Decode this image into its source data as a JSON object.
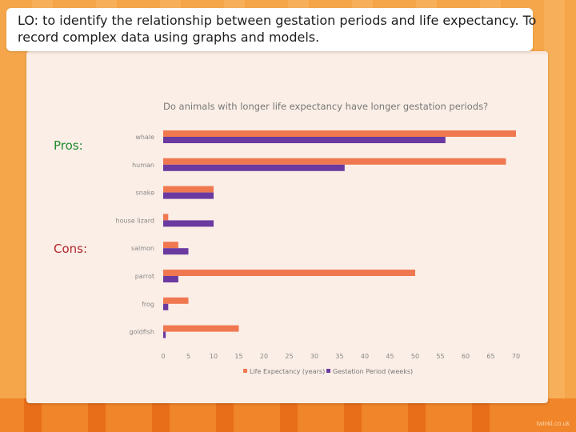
{
  "lo_text": "LO: to identify the relationship between gestation periods and life expectancy. To record complex data using graphs and models.",
  "pros_label": "Pros:",
  "cons_label": "Cons:",
  "watermark": "twinkl.co.uk",
  "colors": {
    "life_expectancy": "#f07850",
    "gestation": "#6a3aa0",
    "pros_text": "#1f8a2e",
    "cons_text": "#b3262e",
    "background": "#f5a64a"
  },
  "chart_data": {
    "type": "bar",
    "orientation": "horizontal",
    "title": "Do animals with longer life expectancy have longer gestation periods?",
    "categories": [
      "whale",
      "human",
      "snake",
      "house lizard",
      "salmon",
      "parrot",
      "frog",
      "goldfish"
    ],
    "series": [
      {
        "name": "Life Expectancy (years)",
        "values": [
          70,
          68,
          10,
          1,
          3,
          50,
          5,
          15
        ]
      },
      {
        "name": "Gestation Period (weeks)",
        "values": [
          56,
          36,
          10,
          10,
          5,
          3,
          1,
          0.5
        ]
      }
    ],
    "xlim": [
      0,
      70
    ],
    "xticks": [
      0,
      5,
      10,
      15,
      20,
      25,
      30,
      35,
      40,
      45,
      50,
      55,
      60,
      65,
      70
    ],
    "legend_position": "bottom",
    "grid": false
  }
}
